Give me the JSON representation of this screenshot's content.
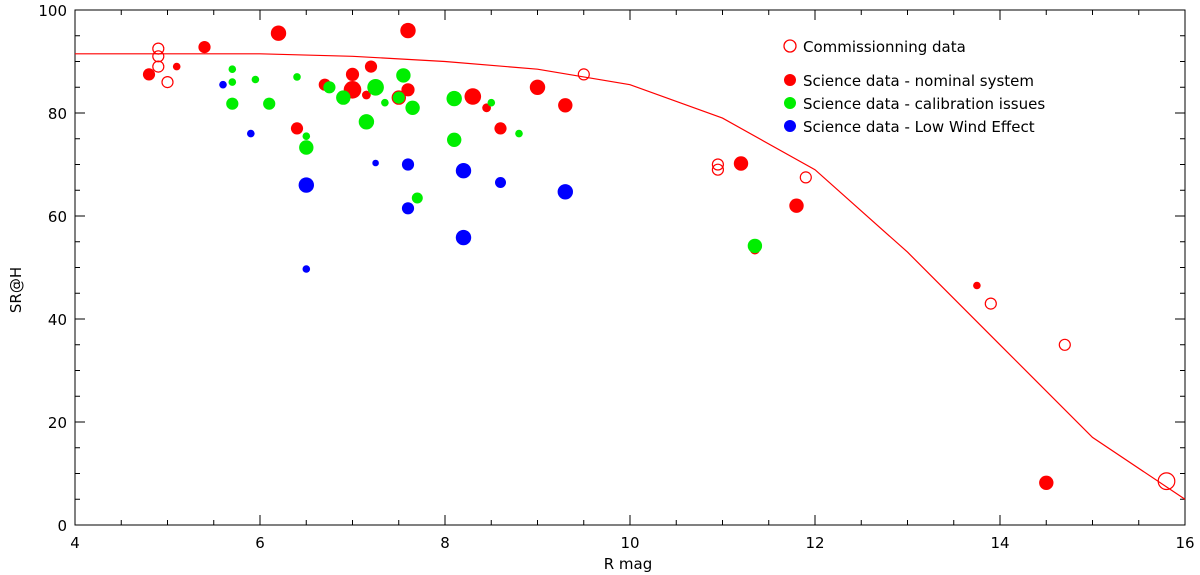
{
  "chart_data": {
    "type": "scatter",
    "title": "",
    "xlabel": "R mag",
    "ylabel": "SR@H",
    "xlim": [
      4,
      16
    ],
    "ylim": [
      0,
      100
    ],
    "xticks": [
      "4",
      "6",
      "8",
      "10",
      "12",
      "14",
      "16"
    ],
    "yticks": [
      "0",
      "20",
      "40",
      "60",
      "80",
      "100"
    ],
    "legend_position": "top-right",
    "colors": {
      "red": "#ff0000",
      "green": "#00ee00",
      "blue": "#0000ff",
      "axis": "#000000"
    },
    "legend": [
      {
        "label": "Commissionning data",
        "color": "#ff0000",
        "marker": "open-circle"
      },
      {
        "label": "Science data - nominal system",
        "color": "#ff0000",
        "marker": "filled-circle"
      },
      {
        "label": "Science data - calibration issues",
        "color": "#00ee00",
        "marker": "filled-circle"
      },
      {
        "label": "Science data - Low Wind Effect",
        "color": "#0000ff",
        "marker": "filled-circle"
      }
    ],
    "model_curve": {
      "name": "model",
      "color": "#ff0000",
      "x": [
        4,
        5,
        6,
        7,
        8,
        9,
        10,
        11,
        12,
        13,
        14,
        15,
        16
      ],
      "y": [
        91.5,
        91.5,
        91.5,
        91,
        90,
        88.5,
        85.5,
        79,
        69,
        53,
        35,
        17,
        5
      ]
    },
    "series": [
      {
        "name": "Commissionning data",
        "marker": "open-circle",
        "color": "#ff0000",
        "points": [
          {
            "x": 4.9,
            "y": 92.5,
            "s": 1
          },
          {
            "x": 4.9,
            "y": 91,
            "s": 1
          },
          {
            "x": 4.9,
            "y": 89,
            "s": 1
          },
          {
            "x": 5.0,
            "y": 86,
            "s": 1
          },
          {
            "x": 9.5,
            "y": 87.5,
            "s": 1
          },
          {
            "x": 10.95,
            "y": 70,
            "s": 1
          },
          {
            "x": 10.95,
            "y": 69,
            "s": 1
          },
          {
            "x": 11.9,
            "y": 67.5,
            "s": 1
          },
          {
            "x": 13.9,
            "y": 43,
            "s": 1
          },
          {
            "x": 14.7,
            "y": 35,
            "s": 1
          },
          {
            "x": 15.8,
            "y": 8.5,
            "s": 1.5
          }
        ]
      },
      {
        "name": "Science data - nominal system",
        "marker": "filled-circle",
        "color": "#ff0000",
        "points": [
          {
            "x": 4.8,
            "y": 87.5,
            "s": 1.1
          },
          {
            "x": 5.1,
            "y": 89,
            "s": 0.7
          },
          {
            "x": 5.4,
            "y": 92.8,
            "s": 1.1
          },
          {
            "x": 6.2,
            "y": 95.5,
            "s": 1.4
          },
          {
            "x": 6.4,
            "y": 77,
            "s": 1.1
          },
          {
            "x": 6.7,
            "y": 85.5,
            "s": 1.1
          },
          {
            "x": 7.0,
            "y": 87.5,
            "s": 1.2
          },
          {
            "x": 7.0,
            "y": 84.5,
            "s": 1.6
          },
          {
            "x": 7.15,
            "y": 83.5,
            "s": 0.8
          },
          {
            "x": 7.2,
            "y": 89,
            "s": 1.1
          },
          {
            "x": 7.5,
            "y": 83,
            "s": 1.3
          },
          {
            "x": 7.6,
            "y": 84.5,
            "s": 1.2
          },
          {
            "x": 7.6,
            "y": 96,
            "s": 1.4
          },
          {
            "x": 8.3,
            "y": 83.2,
            "s": 1.5
          },
          {
            "x": 8.45,
            "y": 81,
            "s": 0.8
          },
          {
            "x": 8.6,
            "y": 77,
            "s": 1.1
          },
          {
            "x": 9.0,
            "y": 85,
            "s": 1.4
          },
          {
            "x": 9.3,
            "y": 81.5,
            "s": 1.3
          },
          {
            "x": 11.2,
            "y": 70.2,
            "s": 1.3
          },
          {
            "x": 11.35,
            "y": 53.5,
            "s": 0.9
          },
          {
            "x": 11.8,
            "y": 62,
            "s": 1.3
          },
          {
            "x": 13.75,
            "y": 46.5,
            "s": 0.7
          },
          {
            "x": 14.5,
            "y": 8.2,
            "s": 1.3
          }
        ]
      },
      {
        "name": "Science data - calibration issues",
        "marker": "filled-circle",
        "color": "#00ee00",
        "points": [
          {
            "x": 5.7,
            "y": 88.5,
            "s": 0.7
          },
          {
            "x": 5.7,
            "y": 86,
            "s": 0.7
          },
          {
            "x": 5.7,
            "y": 81.8,
            "s": 1.1
          },
          {
            "x": 5.95,
            "y": 86.5,
            "s": 0.7
          },
          {
            "x": 6.1,
            "y": 81.8,
            "s": 1.1
          },
          {
            "x": 6.4,
            "y": 87,
            "s": 0.7
          },
          {
            "x": 6.5,
            "y": 75.5,
            "s": 0.7
          },
          {
            "x": 6.5,
            "y": 73.3,
            "s": 1.3
          },
          {
            "x": 6.75,
            "y": 85,
            "s": 1.1
          },
          {
            "x": 6.9,
            "y": 83,
            "s": 1.3
          },
          {
            "x": 7.15,
            "y": 78.3,
            "s": 1.4
          },
          {
            "x": 7.25,
            "y": 85,
            "s": 1.5
          },
          {
            "x": 7.35,
            "y": 82,
            "s": 0.7
          },
          {
            "x": 7.5,
            "y": 83,
            "s": 1.1
          },
          {
            "x": 7.55,
            "y": 87.3,
            "s": 1.3
          },
          {
            "x": 7.65,
            "y": 81,
            "s": 1.3
          },
          {
            "x": 7.7,
            "y": 63.5,
            "s": 1.0
          },
          {
            "x": 8.1,
            "y": 82.8,
            "s": 1.4
          },
          {
            "x": 8.1,
            "y": 74.8,
            "s": 1.3
          },
          {
            "x": 8.5,
            "y": 82,
            "s": 0.7
          },
          {
            "x": 8.8,
            "y": 76,
            "s": 0.7
          },
          {
            "x": 11.35,
            "y": 54.2,
            "s": 1.3
          }
        ]
      },
      {
        "name": "Science data - Low Wind Effect",
        "marker": "filled-circle",
        "color": "#0000ff",
        "points": [
          {
            "x": 5.6,
            "y": 85.5,
            "s": 0.7
          },
          {
            "x": 5.9,
            "y": 76,
            "s": 0.7
          },
          {
            "x": 6.5,
            "y": 66,
            "s": 1.4
          },
          {
            "x": 6.5,
            "y": 49.7,
            "s": 0.7
          },
          {
            "x": 7.25,
            "y": 70.3,
            "s": 0.6
          },
          {
            "x": 7.6,
            "y": 70,
            "s": 1.1
          },
          {
            "x": 7.6,
            "y": 61.5,
            "s": 1.1
          },
          {
            "x": 8.2,
            "y": 68.8,
            "s": 1.4
          },
          {
            "x": 8.2,
            "y": 55.8,
            "s": 1.4
          },
          {
            "x": 8.6,
            "y": 66.5,
            "s": 1.0
          },
          {
            "x": 9.3,
            "y": 64.7,
            "s": 1.4
          }
        ]
      }
    ]
  }
}
